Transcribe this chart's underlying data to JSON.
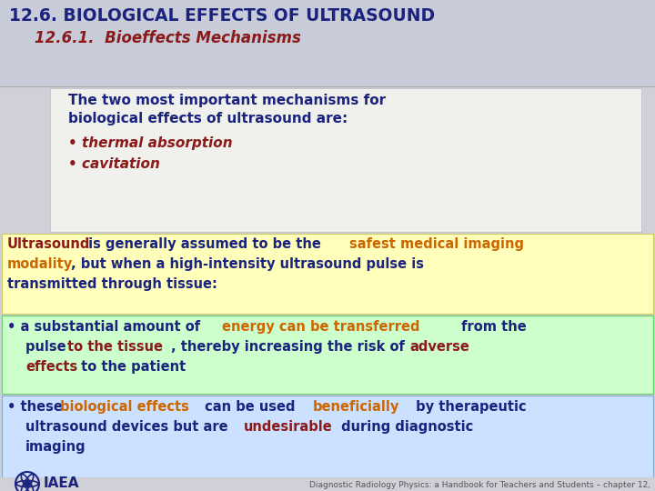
{
  "title_main": "12.6. BIOLOGICAL EFFECTS OF ULTRASOUND",
  "title_sub": "12.6.1.  Bioeffects Mechanisms",
  "header_bg": "#c8ccd8",
  "body_bg": "#d0d0d8",
  "main_title_color": "#1a237e",
  "sub_title_color": "#8b1a1a",
  "dark_blue": "#1a237e",
  "dark_red": "#8b1a1a",
  "orange": "#cc6600",
  "box1_bg": "#ffffbb",
  "box2_bg": "#ccffcc",
  "box3_bg": "#cce0ff",
  "footer_bg": "#d0d0d8",
  "footer_text": "Diagnostic Radiology Physics: a Handbook for Teachers and Students – chapter 12,",
  "iaea_text": "IAEA",
  "white_box_bg": "#f0f0ec"
}
